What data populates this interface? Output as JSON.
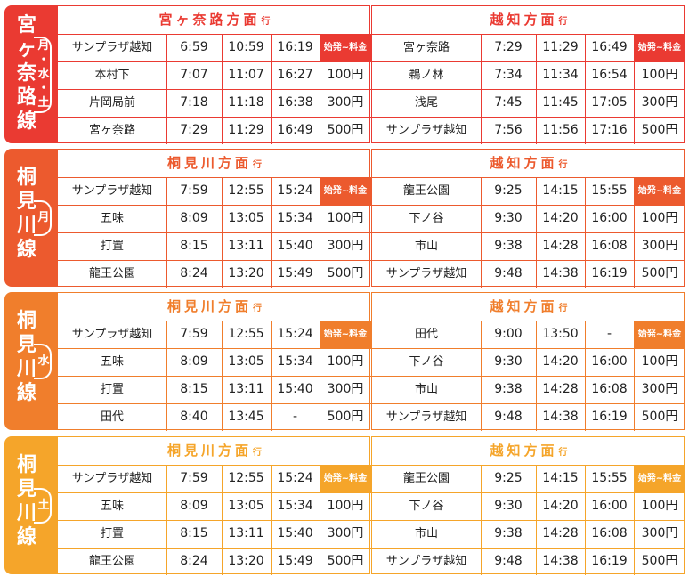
{
  "badge_label": "始発~料金",
  "blocks": [
    {
      "id": "miyakenaji",
      "color": "#ea3a32",
      "line_chars": [
        "宮",
        "ヶ",
        "奈",
        "路",
        "線"
      ],
      "days": [
        "月",
        "水",
        "土"
      ],
      "days_sep": "・",
      "left": {
        "title": "宮ヶ奈路方面",
        "suffix": "行",
        "rows": [
          {
            "stop": "サンプラザ越知",
            "t1": "6:59",
            "t2": "10:59",
            "t3": "16:19",
            "fare": ""
          },
          {
            "stop": "本村下",
            "t1": "7:07",
            "t2": "11:07",
            "t3": "16:27",
            "fare": "100円"
          },
          {
            "stop": "片岡局前",
            "t1": "7:18",
            "t2": "11:18",
            "t3": "16:38",
            "fare": "300円"
          },
          {
            "stop": "宮ヶ奈路",
            "t1": "7:29",
            "t2": "11:29",
            "t3": "16:49",
            "fare": "500円"
          }
        ]
      },
      "right": {
        "title": "越知方面",
        "suffix": "行",
        "rows": [
          {
            "stop": "宮ヶ奈路",
            "t1": "7:29",
            "t2": "11:29",
            "t3": "16:49",
            "fare": ""
          },
          {
            "stop": "鵜ノ林",
            "t1": "7:34",
            "t2": "11:34",
            "t3": "16:54",
            "fare": "100円"
          },
          {
            "stop": "浅尾",
            "t1": "7:45",
            "t2": "11:45",
            "t3": "17:05",
            "fare": "300円"
          },
          {
            "stop": "サンプラザ越知",
            "t1": "7:56",
            "t2": "11:56",
            "t3": "17:16",
            "fare": "500円"
          }
        ]
      }
    },
    {
      "id": "kirimigawa-mon",
      "color": "#ec5a2e",
      "line_chars": [
        "桐",
        "見",
        "川",
        "線"
      ],
      "days": [
        "月"
      ],
      "days_sep": "",
      "left": {
        "title": "桐見川方面",
        "suffix": "行",
        "rows": [
          {
            "stop": "サンプラザ越知",
            "t1": "7:59",
            "t2": "12:55",
            "t3": "15:24",
            "fare": ""
          },
          {
            "stop": "五味",
            "t1": "8:09",
            "t2": "13:05",
            "t3": "15:34",
            "fare": "100円"
          },
          {
            "stop": "打置",
            "t1": "8:15",
            "t2": "13:11",
            "t3": "15:40",
            "fare": "300円"
          },
          {
            "stop": "龍王公園",
            "t1": "8:24",
            "t2": "13:20",
            "t3": "15:49",
            "fare": "500円"
          }
        ]
      },
      "right": {
        "title": "越知方面",
        "suffix": "行",
        "rows": [
          {
            "stop": "龍王公園",
            "t1": "9:25",
            "t2": "14:15",
            "t3": "15:55",
            "fare": ""
          },
          {
            "stop": "下ノ谷",
            "t1": "9:30",
            "t2": "14:20",
            "t3": "16:00",
            "fare": "100円"
          },
          {
            "stop": "市山",
            "t1": "9:38",
            "t2": "14:28",
            "t3": "16:08",
            "fare": "300円"
          },
          {
            "stop": "サンプラザ越知",
            "t1": "9:48",
            "t2": "14:38",
            "t3": "16:19",
            "fare": "500円"
          }
        ]
      }
    },
    {
      "id": "kirimigawa-wed",
      "color": "#f07e2c",
      "line_chars": [
        "桐",
        "見",
        "川",
        "線"
      ],
      "days": [
        "水"
      ],
      "days_sep": "",
      "left": {
        "title": "桐見川方面",
        "suffix": "行",
        "rows": [
          {
            "stop": "サンプラザ越知",
            "t1": "7:59",
            "t2": "12:55",
            "t3": "15:24",
            "fare": ""
          },
          {
            "stop": "五味",
            "t1": "8:09",
            "t2": "13:05",
            "t3": "15:34",
            "fare": "100円"
          },
          {
            "stop": "打置",
            "t1": "8:15",
            "t2": "13:11",
            "t3": "15:40",
            "fare": "300円"
          },
          {
            "stop": "田代",
            "t1": "8:40",
            "t2": "13:45",
            "t3": "-",
            "fare": "500円"
          }
        ]
      },
      "right": {
        "title": "越知方面",
        "suffix": "行",
        "rows": [
          {
            "stop": "田代",
            "t1": "9:00",
            "t2": "13:50",
            "t3": "-",
            "fare": ""
          },
          {
            "stop": "下ノ谷",
            "t1": "9:30",
            "t2": "14:20",
            "t3": "16:00",
            "fare": "100円"
          },
          {
            "stop": "市山",
            "t1": "9:38",
            "t2": "14:28",
            "t3": "16:08",
            "fare": "300円"
          },
          {
            "stop": "サンプラザ越知",
            "t1": "9:48",
            "t2": "14:38",
            "t3": "16:19",
            "fare": "500円"
          }
        ]
      }
    },
    {
      "id": "kirimigawa-sat",
      "color": "#f5a52a",
      "line_chars": [
        "桐",
        "見",
        "川",
        "線"
      ],
      "days": [
        "土"
      ],
      "days_sep": "",
      "left": {
        "title": "桐見川方面",
        "suffix": "行",
        "rows": [
          {
            "stop": "サンプラザ越知",
            "t1": "7:59",
            "t2": "12:55",
            "t3": "15:24",
            "fare": ""
          },
          {
            "stop": "五味",
            "t1": "8:09",
            "t2": "13:05",
            "t3": "15:34",
            "fare": "100円"
          },
          {
            "stop": "打置",
            "t1": "8:15",
            "t2": "13:11",
            "t3": "15:40",
            "fare": "300円"
          },
          {
            "stop": "龍王公園",
            "t1": "8:24",
            "t2": "13:20",
            "t3": "15:49",
            "fare": "500円"
          }
        ]
      },
      "right": {
        "title": "越知方面",
        "suffix": "行",
        "rows": [
          {
            "stop": "龍王公園",
            "t1": "9:25",
            "t2": "14:15",
            "t3": "15:55",
            "fare": ""
          },
          {
            "stop": "下ノ谷",
            "t1": "9:30",
            "t2": "14:20",
            "t3": "16:00",
            "fare": "100円"
          },
          {
            "stop": "市山",
            "t1": "9:38",
            "t2": "14:28",
            "t3": "16:08",
            "fare": "300円"
          },
          {
            "stop": "サンプラザ越知",
            "t1": "9:48",
            "t2": "14:38",
            "t3": "16:19",
            "fare": "500円"
          }
        ]
      }
    }
  ]
}
